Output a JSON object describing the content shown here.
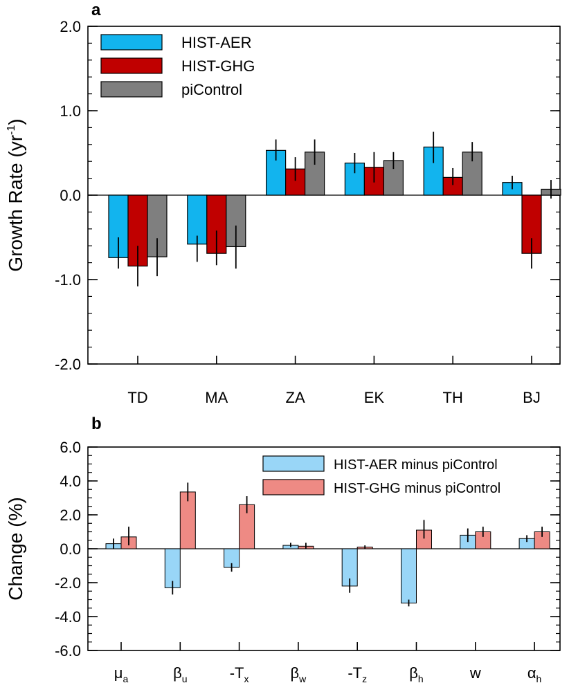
{
  "chart_data": [
    {
      "panel": "a",
      "type": "bar",
      "ylabel": "Growth Rate (yr",
      "ylabel_sup": "-1",
      "ylabel_close": ")",
      "ylim": [
        -2.0,
        2.0
      ],
      "yticks": [
        -2.0,
        -1.0,
        0.0,
        1.0,
        2.0
      ],
      "ytick_labels": [
        "-2.0",
        "-1.0",
        "0.0",
        "1.0",
        "2.0"
      ],
      "categories": [
        "TD",
        "MA",
        "ZA",
        "EK",
        "TH",
        "BJ"
      ],
      "legend_position": "top-left",
      "error_bars": true,
      "series": [
        {
          "name": "HIST-AER",
          "color": "#12b4ee",
          "values": [
            -0.74,
            -0.58,
            0.53,
            0.38,
            0.57,
            0.15
          ],
          "err_low": [
            -0.87,
            -0.79,
            0.41,
            0.26,
            0.38,
            0.07
          ],
          "err_high": [
            -0.5,
            -0.48,
            0.66,
            0.5,
            0.75,
            0.23
          ]
        },
        {
          "name": "HIST-GHG",
          "color": "#c00000",
          "values": [
            -0.84,
            -0.69,
            0.31,
            0.33,
            0.21,
            -0.69
          ],
          "err_low": [
            -1.08,
            -0.83,
            0.17,
            0.15,
            0.12,
            -0.87
          ],
          "err_high": [
            -0.6,
            -0.42,
            0.45,
            0.51,
            0.32,
            -0.51
          ]
        },
        {
          "name": "piControl",
          "color": "#7f7f7f",
          "values": [
            -0.73,
            -0.61,
            0.51,
            0.41,
            0.51,
            0.07
          ],
          "err_low": [
            -0.96,
            -0.87,
            0.36,
            0.31,
            0.4,
            -0.04
          ],
          "err_high": [
            -0.51,
            -0.36,
            0.66,
            0.51,
            0.63,
            0.18
          ]
        }
      ]
    },
    {
      "panel": "b",
      "type": "bar",
      "ylabel": "Change (%)",
      "ylim": [
        -6.0,
        6.0
      ],
      "yticks": [
        -6.0,
        -4.0,
        -2.0,
        0.0,
        2.0,
        4.0,
        6.0
      ],
      "ytick_labels": [
        "-6.0",
        "-4.0",
        "-2.0",
        "0.0",
        "2.0",
        "4.0",
        "6.0"
      ],
      "categories": [
        {
          "base": "μ",
          "sub": "a"
        },
        {
          "base": "β",
          "sub": "u"
        },
        {
          "base": "-T",
          "sub": "x"
        },
        {
          "base": "β",
          "sub": "w"
        },
        {
          "base": "-T",
          "sub": "z"
        },
        {
          "base": "β",
          "sub": "h"
        },
        {
          "base": "w",
          "sub": ""
        },
        {
          "base": "α",
          "sub": "h"
        }
      ],
      "legend_position": "top-right",
      "error_bars": true,
      "series": [
        {
          "name": "HIST-AER minus piControl",
          "color": "#99d6f7",
          "values": [
            0.3,
            -2.3,
            -1.1,
            0.2,
            -2.2,
            -3.2,
            0.8,
            0.6
          ],
          "err_low": [
            0.0,
            -2.7,
            -1.35,
            0.1,
            -2.6,
            -3.4,
            0.4,
            0.4
          ],
          "err_high": [
            0.6,
            -1.9,
            -0.85,
            0.35,
            -1.75,
            -3.0,
            1.2,
            0.8
          ]
        },
        {
          "name": "HIST-GHG minus piControl",
          "color": "#ee8a84",
          "values": [
            0.7,
            3.35,
            2.6,
            0.15,
            0.1,
            1.1,
            1.0,
            1.0
          ],
          "err_low": [
            0.2,
            2.8,
            2.1,
            0.0,
            0.0,
            0.6,
            0.7,
            0.7
          ],
          "err_high": [
            1.3,
            3.9,
            3.1,
            0.35,
            0.2,
            1.7,
            1.3,
            1.3
          ]
        }
      ]
    }
  ]
}
